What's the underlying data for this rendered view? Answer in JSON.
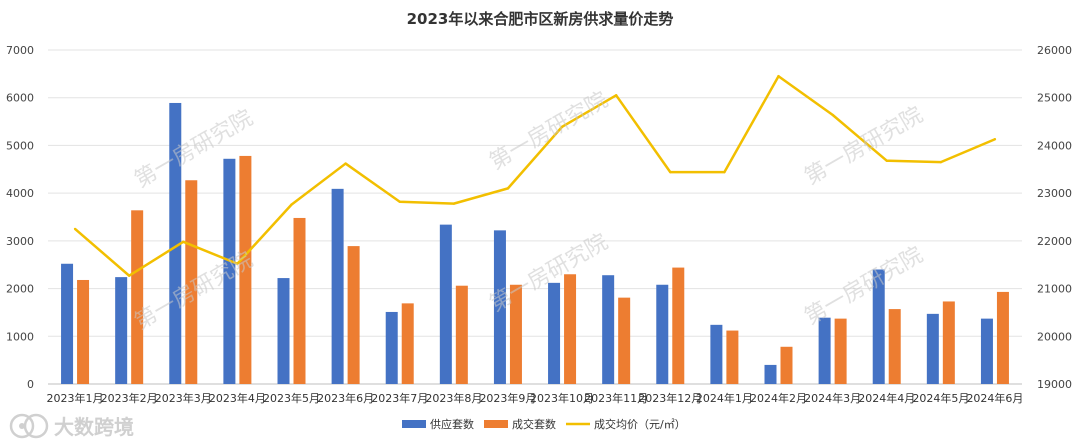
{
  "chart_data": {
    "type": "bar",
    "title": "2023年以来合肥市区新房供求量价走势",
    "categories": [
      "2023年1月",
      "2023年2月",
      "2023年3月",
      "2023年4月",
      "2023年5月",
      "2023年6月",
      "2023年7月",
      "2023年8月",
      "2023年9月",
      "2023年10月",
      "2023年11月",
      "2023年12月",
      "2024年1月",
      "2024年2月",
      "2024年3月",
      "2024年4月",
      "2024年5月",
      "2024年6月"
    ],
    "series": [
      {
        "name": "供应套数",
        "kind": "bar",
        "axis": "left",
        "color": "#4472C4",
        "values": [
          2520,
          2240,
          5890,
          4720,
          2220,
          4090,
          1510,
          3340,
          3220,
          2120,
          2280,
          2080,
          1240,
          400,
          1390,
          2400,
          1470,
          1370
        ]
      },
      {
        "name": "成交套数",
        "kind": "bar",
        "axis": "left",
        "color": "#ED7D31",
        "values": [
          2180,
          3640,
          4270,
          4780,
          3480,
          2890,
          1690,
          2060,
          2080,
          2300,
          1810,
          2440,
          1120,
          780,
          1370,
          1570,
          1730,
          1930
        ]
      },
      {
        "name": "成交均价（元/㎡）",
        "kind": "line",
        "axis": "right",
        "color": "#F2BF00",
        "values": [
          22250,
          21270,
          21980,
          21520,
          22760,
          23620,
          22820,
          22780,
          23100,
          24390,
          25050,
          23440,
          23440,
          25450,
          24640,
          23680,
          23650,
          24130
        ]
      }
    ],
    "y_left": {
      "min": 0,
      "max": 7000,
      "ticks": [
        0,
        1000,
        2000,
        3000,
        4000,
        5000,
        6000,
        7000
      ]
    },
    "y_right": {
      "min": 19000,
      "max": 26000,
      "ticks": [
        19000,
        20000,
        21000,
        22000,
        23000,
        24000,
        25000,
        26000
      ]
    },
    "grid": true,
    "legend_position": "bottom"
  },
  "watermark": {
    "text": "第一房研究院"
  },
  "brand": {
    "text": "大数跨境"
  }
}
